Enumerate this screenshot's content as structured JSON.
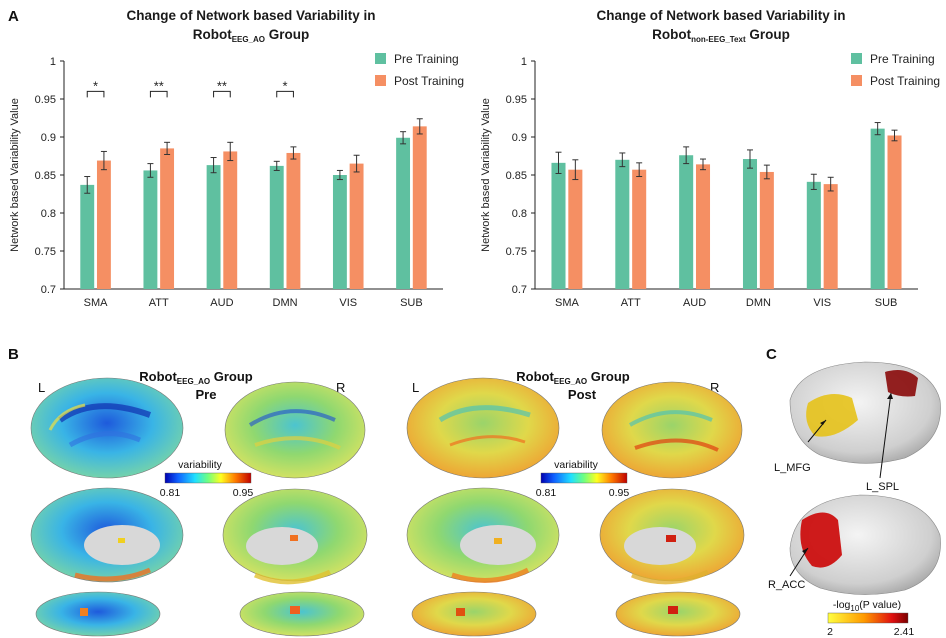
{
  "colors": {
    "pre": "#5fc0a0",
    "post": "#f58f63"
  },
  "panels": {
    "a_letter": "A",
    "b_letter": "B",
    "c_letter": "C"
  },
  "chart_data": [
    {
      "type": "bar",
      "title_line1": "Change of Network based Variability in",
      "title_line2_main": "Robot",
      "title_line2_sub": "EEG_AO",
      "title_line2_tail": " Group",
      "ylabel": "Network based  Variability Value",
      "xlabel": "",
      "ylim": [
        0.7,
        1.0
      ],
      "yticks": [
        "0.7",
        "0.75",
        "0.8",
        "0.85",
        "0.9",
        "0.95",
        "1"
      ],
      "categories": [
        "SMA",
        "ATT",
        "AUD",
        "DMN",
        "VIS",
        "SUB"
      ],
      "legend_position": "top-right",
      "series": [
        {
          "name": "Pre Training",
          "values": [
            0.837,
            0.856,
            0.863,
            0.862,
            0.85,
            0.899
          ],
          "errors": [
            0.011,
            0.009,
            0.01,
            0.006,
            0.006,
            0.008
          ]
        },
        {
          "name": "Post Training",
          "values": [
            0.869,
            0.885,
            0.881,
            0.879,
            0.865,
            0.914
          ],
          "errors": [
            0.012,
            0.008,
            0.012,
            0.008,
            0.011,
            0.01
          ]
        }
      ],
      "significance": [
        "*",
        "**",
        "**",
        "*",
        "",
        ""
      ]
    },
    {
      "type": "bar",
      "title_line1": "Change of Network based Variability in",
      "title_line2_main": "Robot",
      "title_line2_sub": "non-EEG_Text",
      "title_line2_tail": " Group",
      "ylabel": "Network based Variability Value",
      "xlabel": "",
      "ylim": [
        0.7,
        1.0
      ],
      "yticks": [
        "0.7",
        "0.75",
        "0.8",
        "0.85",
        "0.9",
        "0.95",
        "1"
      ],
      "categories": [
        "SMA",
        "ATT",
        "AUD",
        "DMN",
        "VIS",
        "SUB"
      ],
      "legend_position": "top-right",
      "series": [
        {
          "name": "Pre Training",
          "values": [
            0.866,
            0.87,
            0.876,
            0.871,
            0.841,
            0.911
          ],
          "errors": [
            0.014,
            0.009,
            0.011,
            0.012,
            0.01,
            0.008
          ]
        },
        {
          "name": "Post Training",
          "values": [
            0.857,
            0.857,
            0.864,
            0.854,
            0.838,
            0.902
          ],
          "errors": [
            0.013,
            0.009,
            0.007,
            0.009,
            0.009,
            0.007
          ]
        }
      ],
      "significance": [
        "",
        "",
        "",
        "",
        "",
        ""
      ]
    }
  ],
  "brains": {
    "left_title_main": "Robot",
    "left_title_sub": "EEG_AO",
    "left_title_tail": " Group",
    "left_subtitle": "Pre",
    "right_title_main": "Robot",
    "right_title_sub": "EEG_AO",
    "right_title_tail": " Group",
    "right_subtitle": "Post",
    "hemi_left": "L",
    "hemi_right": "R",
    "colorbar_label": "variability",
    "colorbar_min": "0.81",
    "colorbar_max": "0.95"
  },
  "panel_c": {
    "roi1": "L_MFG",
    "roi2": "L_SPL",
    "roi3": "R_ACC",
    "colorbar_label_pre": "-log",
    "colorbar_label_sub": "10",
    "colorbar_label_post": "(P value)",
    "colorbar_min": "2",
    "colorbar_max": "2.41"
  }
}
